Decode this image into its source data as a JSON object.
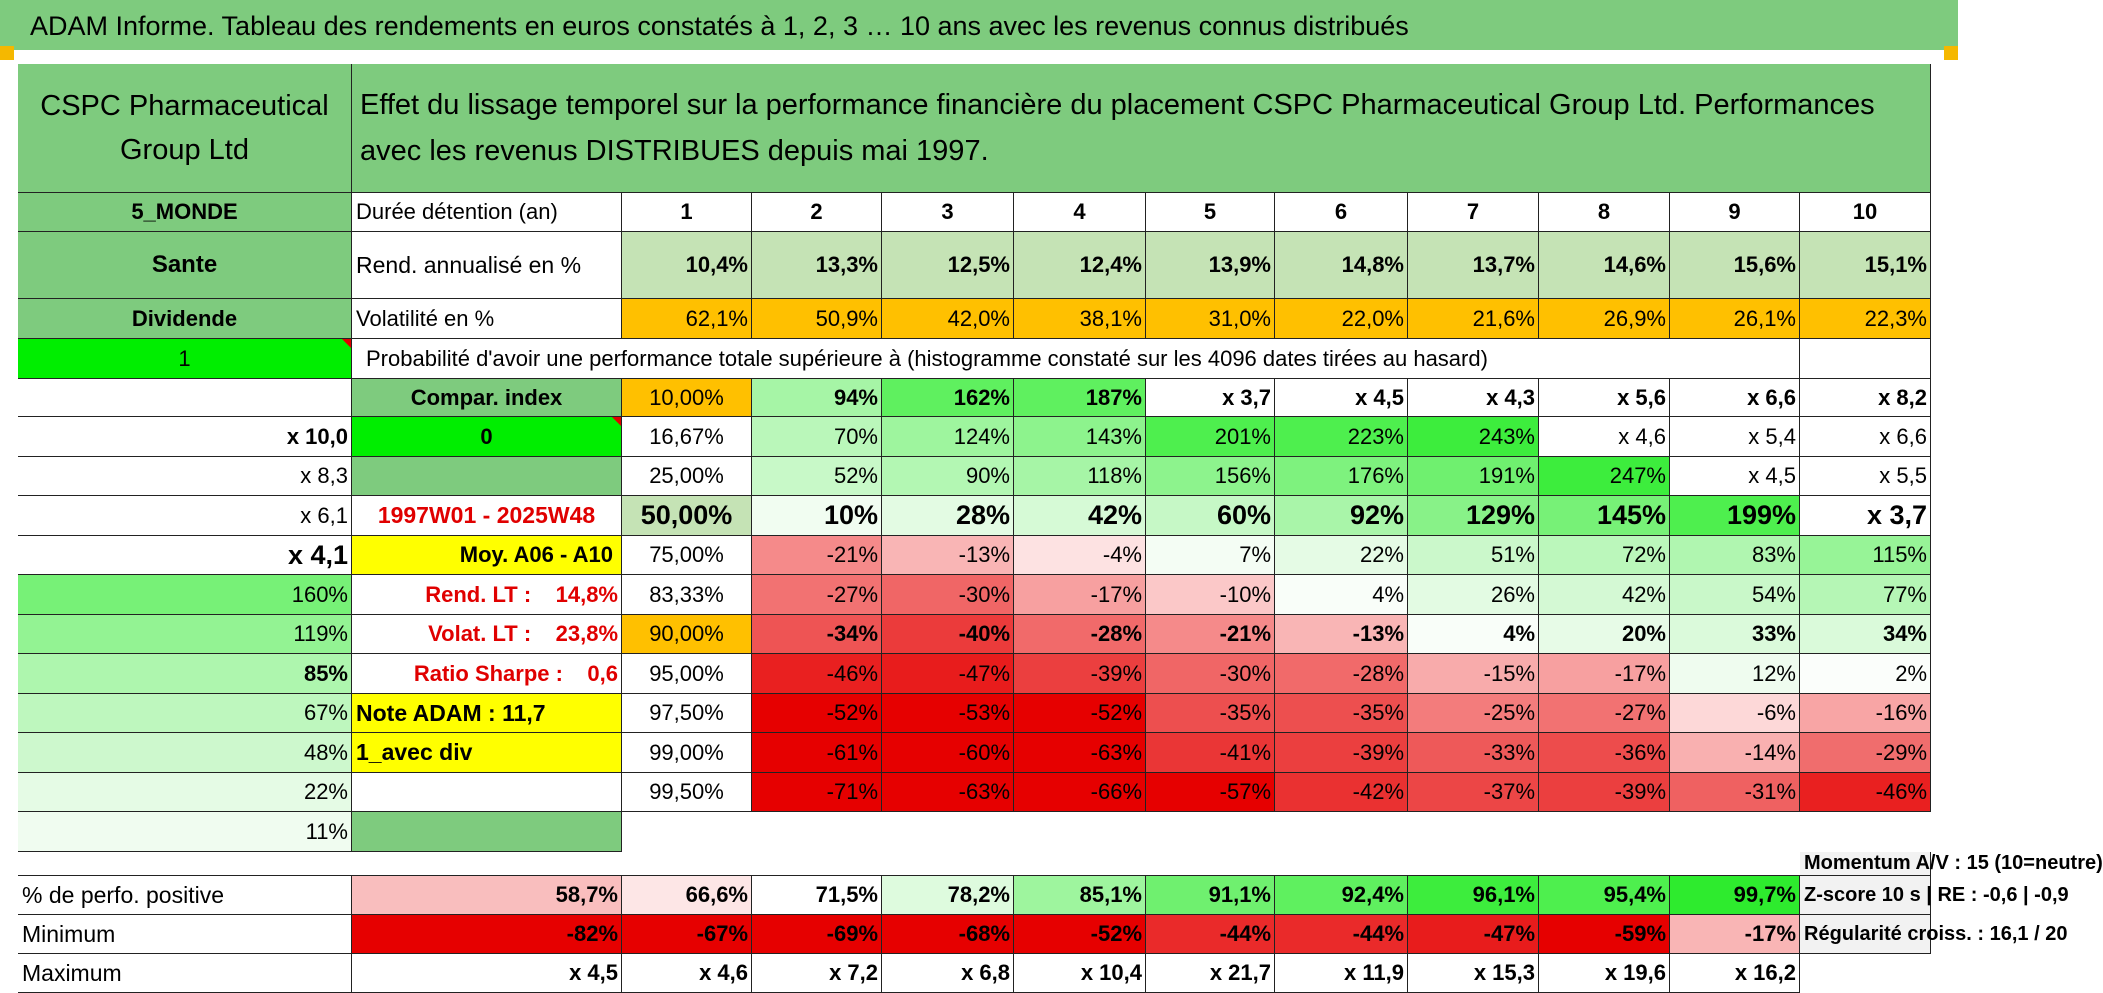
{
  "title": "ADAM Informe. Tableau des rendements en euros constatés à 1, 2, 3 … 10 ans avec les revenus connus distribués",
  "fund_name": "CSPC Pharmaceutical Group Ltd",
  "description": "Effet du lissage temporel sur la performance financière du placement CSPC Pharmaceutical Group Ltd. Performances avec les revenus DISTRIBUES depuis mai 1997.",
  "left_labels": {
    "zone": "5_MONDE",
    "sector": "Sante",
    "type": "Dividende",
    "selector_1": "1",
    "compar_index": "Compar. index",
    "selector_2": "0",
    "period": "1997W01 - 2025W48",
    "moy": "Moy. A06 - A10",
    "rend_lt": "Rend. LT :    14,8%",
    "volat_lt": "Volat. LT :    23,8%",
    "sharpe": "Ratio Sharpe :    0,6",
    "note_adam": "Note ADAM : 11,7",
    "avec_div": "1_avec div"
  },
  "row_labels": {
    "duration": "Durée détention (an)",
    "rend": "Rend. annualisé en %",
    "vol": "Volatilité en %",
    "prob_header": "Probabilité d'avoir une performance totale supérieure à (histogramme constaté sur les 4096 dates tirées au hasard)"
  },
  "years": [
    "1",
    "2",
    "3",
    "4",
    "5",
    "6",
    "7",
    "8",
    "9",
    "10"
  ],
  "rend_values": [
    "10,4%",
    "13,3%",
    "12,5%",
    "12,4%",
    "13,9%",
    "14,8%",
    "13,7%",
    "14,6%",
    "15,6%",
    "15,1%"
  ],
  "vol_values": [
    "62,1%",
    "50,9%",
    "42,0%",
    "38,1%",
    "31,0%",
    "22,0%",
    "21,6%",
    "26,9%",
    "26,1%",
    "22,3%"
  ],
  "prob_rows": [
    {
      "pct": "10,00%",
      "values": [
        "94%",
        "162%",
        "187%",
        "x 3,7",
        "x 4,5",
        "x 4,3",
        "x 5,6",
        "x 6,6",
        "x 8,2",
        "x 10,0"
      ],
      "colors": [
        "#a6f5a6",
        "#5ff05f",
        "#5ff05f",
        "#ffffff",
        "#ffffff",
        "#ffffff",
        "#ffffff",
        "#ffffff",
        "#ffffff",
        "#ffffff"
      ]
    },
    {
      "pct": "16,67%",
      "values": [
        "70%",
        "124%",
        "143%",
        "201%",
        "223%",
        "243%",
        "x 4,6",
        "x 5,4",
        "x 6,6",
        "x 8,3"
      ],
      "colors": [
        "#baf7ba",
        "#9ef59e",
        "#8df38d",
        "#4eef4e",
        "#4eef4e",
        "#3ded3d",
        "#ffffff",
        "#ffffff",
        "#ffffff",
        "#ffffff"
      ]
    },
    {
      "pct": "25,00%",
      "values": [
        "52%",
        "90%",
        "118%",
        "156%",
        "176%",
        "191%",
        "247%",
        "x 4,5",
        "x 5,5",
        "x 6,1"
      ],
      "colors": [
        "#c8f9c8",
        "#b3f7b3",
        "#a6f5a6",
        "#8df38d",
        "#7ef27e",
        "#6ff06f",
        "#3ded3d",
        "#ffffff",
        "#ffffff",
        "#ffffff"
      ]
    },
    {
      "pct": "50,00%",
      "values": [
        "10%",
        "28%",
        "42%",
        "60%",
        "92%",
        "129%",
        "145%",
        "199%",
        "x 3,7",
        "x 4,1"
      ],
      "colors": [
        "#f1fdf1",
        "#e3fbe3",
        "#d6fad6",
        "#c6f8c6",
        "#a9f5a9",
        "#88f288",
        "#77f177",
        "#4eef4e",
        "#ffffff",
        "#ffffff"
      ]
    },
    {
      "pct": "75,00%",
      "values": [
        "-21%",
        "-13%",
        "-4%",
        "7%",
        "22%",
        "51%",
        "72%",
        "83%",
        "115%",
        "160%"
      ],
      "colors": [
        "#f58a8a",
        "#f9b5b5",
        "#fde2e2",
        "#f4fdf4",
        "#e5fbe5",
        "#cbf8cb",
        "#bbf7bb",
        "#b0f6b0",
        "#97f497",
        "#77f177"
      ]
    },
    {
      "pct": "83,33%",
      "values": [
        "-27%",
        "-30%",
        "-17%",
        "-10%",
        "4%",
        "26%",
        "42%",
        "54%",
        "77%",
        "119%"
      ],
      "colors": [
        "#f27272",
        "#f06666",
        "#f7a0a0",
        "#fbc8c8",
        "#f9fef9",
        "#e3fbe3",
        "#d4f9d4",
        "#c9f8c9",
        "#b5f6b5",
        "#93f393"
      ]
    },
    {
      "pct": "90,00%",
      "values": [
        "-34%",
        "-40%",
        "-28%",
        "-21%",
        "-13%",
        "4%",
        "20%",
        "33%",
        "34%",
        "85%"
      ],
      "colors": [
        "#ee5454",
        "#eb3b3b",
        "#f16a6a",
        "#f58a8a",
        "#f9b5b5",
        "#f9fef9",
        "#e7fbe7",
        "#dbfadb",
        "#dafada",
        "#aef6ae"
      ]
    },
    {
      "pct": "95,00%",
      "values": [
        "-46%",
        "-47%",
        "-39%",
        "-30%",
        "-28%",
        "-15%",
        "-17%",
        "12%",
        "2%",
        "67%"
      ],
      "colors": [
        "#e92020",
        "#e81c1c",
        "#eb3f3f",
        "#f06666",
        "#f16a6a",
        "#f8abab",
        "#f7a0a0",
        "#effcef",
        "#fbfefb",
        "#bef7be"
      ]
    },
    {
      "pct": "97,50%",
      "values": [
        "-52%",
        "-53%",
        "-52%",
        "-35%",
        "-35%",
        "-25%",
        "-27%",
        "-6%",
        "-16%",
        "48%"
      ],
      "colors": [
        "#e60000",
        "#e60000",
        "#e60000",
        "#ed4f4f",
        "#ed4f4f",
        "#f37c7c",
        "#f27272",
        "#fdd8d8",
        "#f8a5a5",
        "#cdf8cd"
      ]
    },
    {
      "pct": "99,00%",
      "values": [
        "-61%",
        "-60%",
        "-63%",
        "-41%",
        "-39%",
        "-33%",
        "-36%",
        "-14%",
        "-29%",
        "22%"
      ],
      "colors": [
        "#e60000",
        "#e60000",
        "#e60000",
        "#ea3636",
        "#eb3f3f",
        "#ee5959",
        "#ed4c4c",
        "#f9b0b0",
        "#f06d6d",
        "#e5fbe5"
      ]
    },
    {
      "pct": "99,50%",
      "values": [
        "-71%",
        "-63%",
        "-66%",
        "-57%",
        "-42%",
        "-37%",
        "-39%",
        "-31%",
        "-46%",
        "11%"
      ],
      "colors": [
        "#e60000",
        "#e60000",
        "#e60000",
        "#e60000",
        "#ea3131",
        "#ec4646",
        "#eb3f3f",
        "#ef6161",
        "#e92020",
        "#f0fcf0"
      ]
    }
  ],
  "bottom": {
    "momentum": "Momentum A/V : 15 (10=neutre)",
    "zscore": "Z-score 10 s | RE : -0,6 | -0,9",
    "regularite": "Régularité croiss. : 16,1 / 20",
    "positive_label": "% de perfo. positive",
    "positive_values": [
      "58,7%",
      "66,6%",
      "71,5%",
      "78,2%",
      "85,1%",
      "91,1%",
      "92,4%",
      "96,1%",
      "95,4%",
      "99,7%"
    ],
    "positive_colors": [
      "#f9bebe",
      "#fde6e6",
      "#ffffff",
      "#defbde",
      "#9ef59e",
      "#6ff06f",
      "#5ff05f",
      "#3ded3d",
      "#4eef4e",
      "#2eeb2e"
    ],
    "minimum_label": "Minimum",
    "minimum_values": [
      "-82%",
      "-67%",
      "-69%",
      "-68%",
      "-52%",
      "-44%",
      "-44%",
      "-47%",
      "-59%",
      "-17%"
    ],
    "minimum_colors": [
      "#e60000",
      "#e60000",
      "#e60000",
      "#e60000",
      "#e60000",
      "#ea2a2a",
      "#ea2a2a",
      "#e81c1c",
      "#e60000",
      "#f9b5b5"
    ],
    "maximum_label": "Maximum",
    "maximum_values": [
      "x 4,5",
      "x 4,6",
      "x 7,2",
      "x 6,8",
      "x 10,4",
      "x 21,7",
      "x 11,9",
      "x 15,3",
      "x 19,6",
      "x 16,2"
    ]
  },
  "colors": {
    "header_green": "#7ecb7e",
    "light_green": "#c5e3b5",
    "orange": "#ffc000",
    "yellow": "#ffff00",
    "bright_green": "#00ee00",
    "label_red": "#e00000"
  }
}
